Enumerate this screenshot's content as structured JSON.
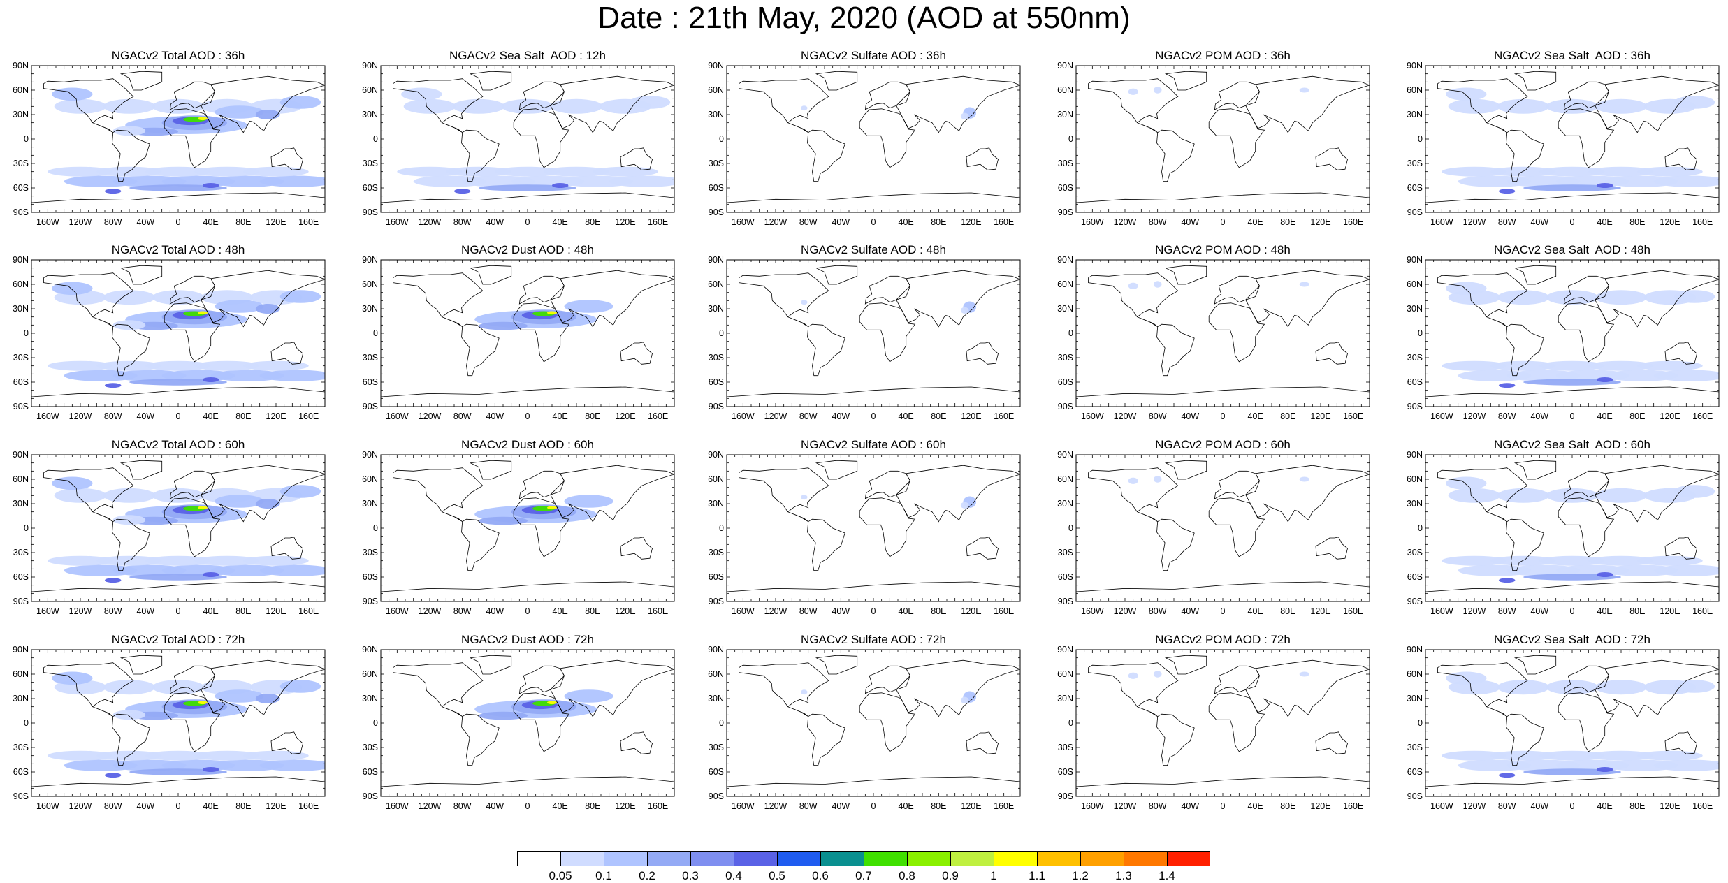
{
  "title": "Date : 21th May, 2020 (AOD at 550nm)",
  "panel_titles": [
    [
      "NGACv2 Total AOD : 36h",
      "NGACv2 Sea Salt  AOD : 12h",
      "NGACv2 Sulfate AOD : 36h",
      "NGACv2 POM AOD : 36h",
      "NGACv2 Sea Salt  AOD : 36h"
    ],
    [
      "NGACv2 Total AOD : 48h",
      "NGACv2 Dust AOD : 48h",
      "NGACv2 Sulfate AOD : 48h",
      "NGACv2 POM AOD : 48h",
      "NGACv2 Sea Salt  AOD : 48h"
    ],
    [
      "NGACv2 Total AOD : 60h",
      "NGACv2 Dust AOD : 60h",
      "NGACv2 Sulfate AOD : 60h",
      "NGACv2 POM AOD : 60h",
      "NGACv2 Sea Salt  AOD : 60h"
    ],
    [
      "NGACv2 Total AOD : 72h",
      "NGACv2 Dust AOD : 72h",
      "NGACv2 Sulfate AOD : 72h",
      "NGACv2 POM AOD : 72h",
      "NGACv2 Sea Salt  AOD : 72h"
    ]
  ],
  "lat_labels": [
    "90N",
    "60N",
    "30N",
    "0",
    "30S",
    "60S",
    "90S"
  ],
  "lon_labels": [
    "160W",
    "120W",
    "80W",
    "40W",
    "0",
    "40E",
    "80E",
    "120E",
    "160E"
  ],
  "colorbar": {
    "labels": [
      "0.05",
      "0.1",
      "0.2",
      "0.3",
      "0.4",
      "0.5",
      "0.6",
      "0.7",
      "0.8",
      "0.9",
      "1",
      "1.1",
      "1.2",
      "1.3",
      "1.4"
    ],
    "colors": [
      "#ffffff",
      "#d0dcff",
      "#afc4ff",
      "#94aaf5",
      "#7f8ff0",
      "#5a62e6",
      "#1f5cf0",
      "#0a9090",
      "#40e000",
      "#8af000",
      "#bff040",
      "#ffff00",
      "#ffc000",
      "#ffa000",
      "#ff7800",
      "#ff2000"
    ]
  }
}
